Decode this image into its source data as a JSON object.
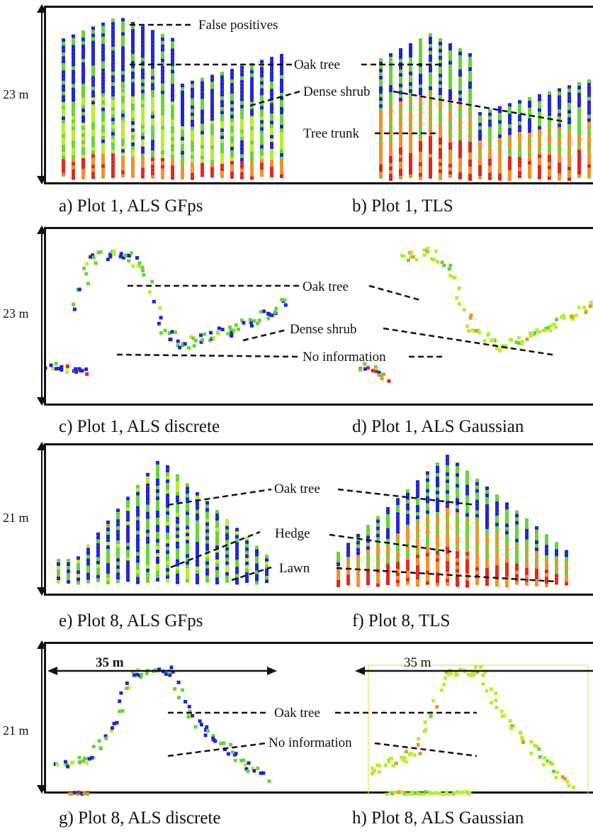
{
  "panels": [
    {
      "id": "a",
      "caption": "a) Plot 1, ALS GFps"
    },
    {
      "id": "b",
      "caption": "b) Plot 1, TLS"
    },
    {
      "id": "c",
      "caption": "c) Plot 1, ALS discrete"
    },
    {
      "id": "d",
      "caption": "d) Plot 1, ALS Gaussian"
    },
    {
      "id": "e",
      "caption": "e) Plot 8, ALS GFps"
    },
    {
      "id": "f",
      "caption": "f) Plot 8, TLS"
    },
    {
      "id": "g",
      "caption": "g) Plot 8, ALS discrete"
    },
    {
      "id": "h",
      "caption": "h) Plot 8, ALS Gaussian"
    }
  ],
  "heights": [
    "23 m",
    "23 m",
    "21 m",
    "21 m"
  ],
  "widths": [
    "35 m",
    "35 m"
  ],
  "labels": {
    "false_positives": "False positives",
    "oak_tree": "Oak tree",
    "dense_shrub": "Dense shrub",
    "tree_trunk": "Tree trunk",
    "no_information": "No information",
    "hedge": "Hedge",
    "lawn": "Lawn"
  },
  "colors": {
    "blue": "#2323d6",
    "green": "#66d43a",
    "yellow_green": "#b6ee2e",
    "orange": "#f0922a",
    "red": "#e0261f"
  }
}
